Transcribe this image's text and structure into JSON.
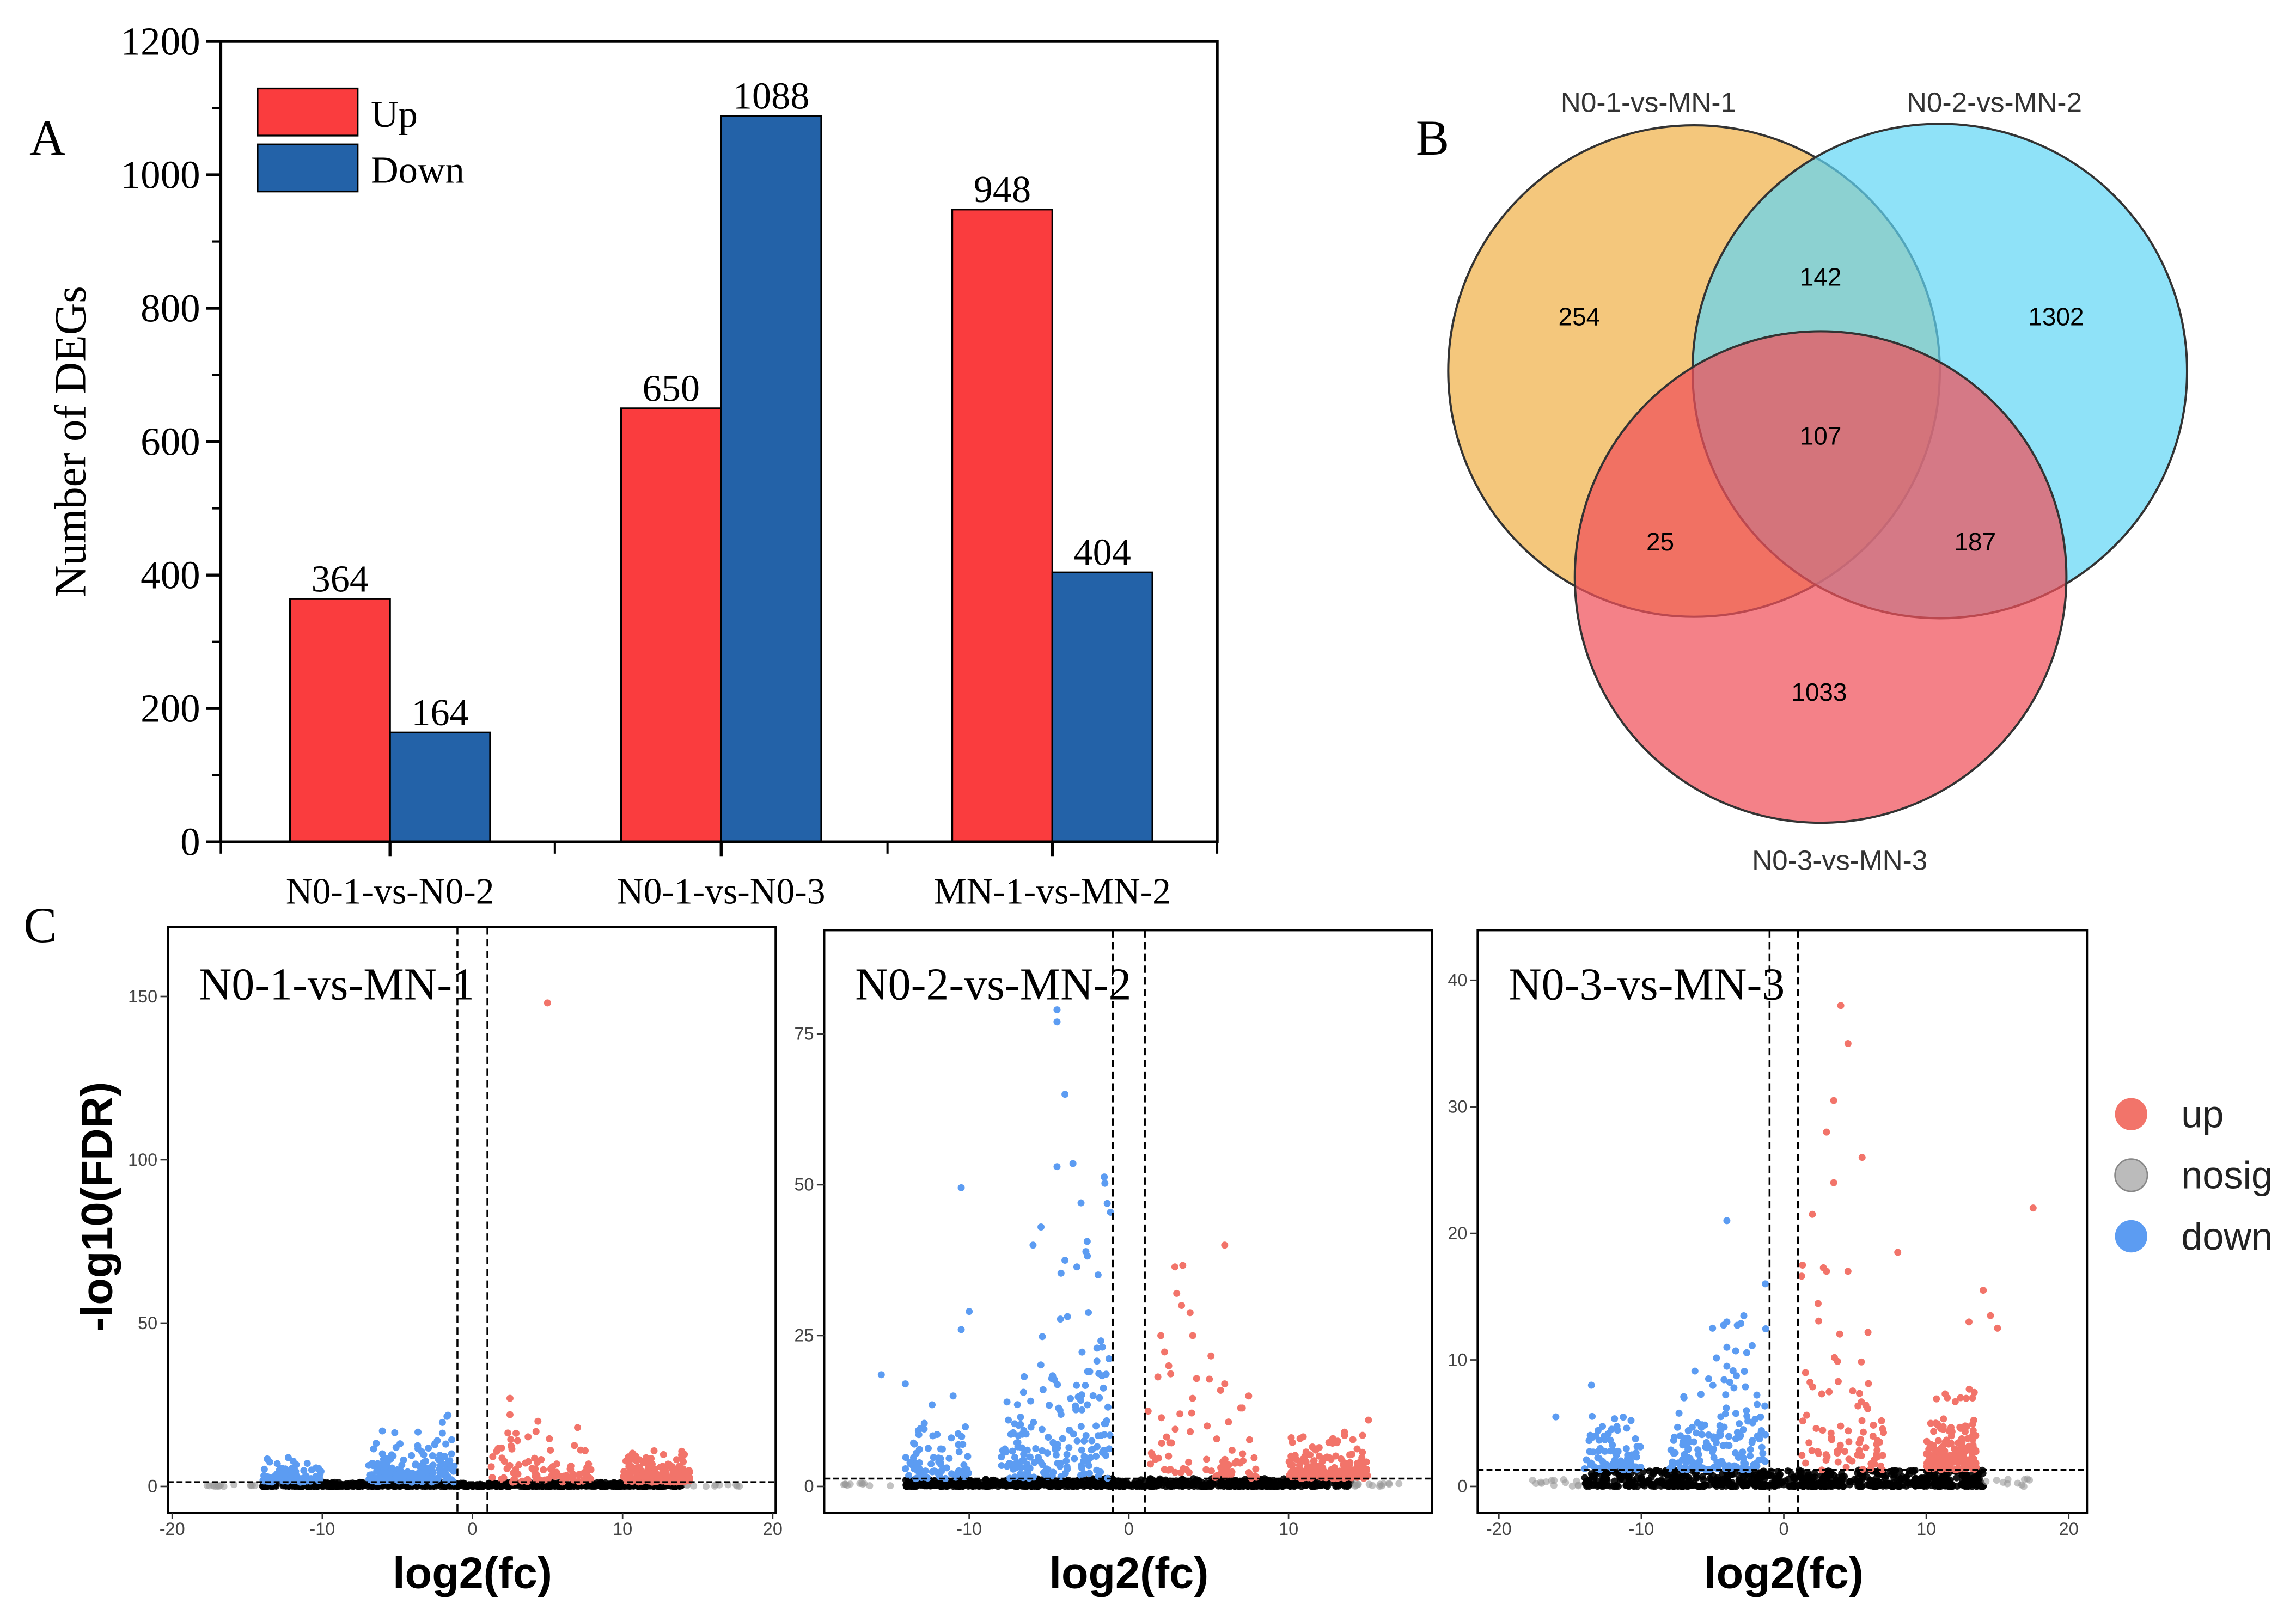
{
  "panel_labels": {
    "a": "A",
    "b": "B",
    "c": "C"
  },
  "colors": {
    "up_bar": "#fa3c3e",
    "down_bar": "#2362a8",
    "venn1": "#f0b450",
    "venn2": "#5fd5f5",
    "venn3": "#f0505a",
    "volcano_up": "#f2746a",
    "volcano_nosig": "#000000",
    "volcano_down": "#5c9cf2"
  },
  "chart_data": [
    {
      "type": "bar",
      "title": "",
      "xlabel": "",
      "ylabel": "Number of DEGs",
      "ylim": [
        0,
        1200
      ],
      "yticks": [
        0,
        200,
        400,
        600,
        800,
        1000,
        1200
      ],
      "categories": [
        "N0-1-vs-N0-2",
        "N0-1-vs-N0-3",
        "MN-1-vs-MN-2"
      ],
      "series": [
        {
          "name": "Up",
          "values": [
            364,
            650,
            948
          ]
        },
        {
          "name": "Down",
          "values": [
            164,
            1088,
            404
          ]
        }
      ],
      "legend": "top-left",
      "data_labels": true
    },
    {
      "type": "venn",
      "sets": [
        "N0-1-vs-MN-1",
        "N0-2-vs-MN-2",
        "N0-3-vs-MN-3"
      ],
      "regions": {
        "only_1": 254,
        "only_2": 1302,
        "only_3": 1033,
        "1_2": 142,
        "1_3": 25,
        "2_3": 187,
        "1_2_3": 107
      }
    },
    {
      "type": "scatter",
      "title": "N0-1-vs-MN-1",
      "xlabel": "log2(fc)",
      "ylabel": "-log10(FDR)",
      "xlim": [
        -20,
        20
      ],
      "ylim": [
        0,
        150
      ],
      "xticks": [
        -20,
        -10,
        0,
        10,
        20
      ],
      "yticks": [
        0,
        50,
        100,
        150
      ],
      "fc_threshold": 1,
      "fdr_threshold_line": 1.3,
      "highlighted_points": {
        "up": [
          [
            5,
            148
          ],
          [
            2.5,
            27
          ],
          [
            2.5,
            22
          ],
          [
            7,
            18
          ],
          [
            3,
            14
          ]
        ],
        "down": [
          [
            -6,
            17
          ],
          [
            -6,
            10
          ],
          [
            -2.5,
            13
          ],
          [
            -13,
            7
          ],
          [
            -13.5,
            7.5
          ]
        ]
      }
    },
    {
      "type": "scatter",
      "title": "N0-2-vs-MN-2",
      "xlabel": "log2(fc)",
      "ylabel": "",
      "xlim": [
        -18,
        20
      ],
      "ylim": [
        0,
        80
      ],
      "xticks": [
        -10,
        0,
        10
      ],
      "yticks": [
        0,
        25,
        50,
        75
      ],
      "fc_threshold": 1,
      "fdr_threshold_line": 1.3,
      "highlighted_points": {
        "up": [
          [
            6,
            40
          ],
          [
            3,
            32
          ],
          [
            3.3,
            30
          ],
          [
            2,
            25
          ],
          [
            4,
            25
          ],
          [
            2.5,
            20
          ],
          [
            6,
            17
          ],
          [
            7.5,
            15
          ],
          [
            7,
            13
          ],
          [
            15,
            11
          ],
          [
            13.5,
            9
          ]
        ],
        "down": [
          [
            -4.5,
            79
          ],
          [
            -4.5,
            77
          ],
          [
            -4,
            65
          ],
          [
            -4.5,
            53
          ],
          [
            -3.5,
            53.5
          ],
          [
            -10.5,
            49.5
          ],
          [
            -3,
            47
          ],
          [
            -5.5,
            43
          ],
          [
            -6,
            40
          ],
          [
            -4,
            37.5
          ],
          [
            -10,
            29
          ],
          [
            -10.5,
            26
          ],
          [
            -15.5,
            18.5
          ],
          [
            -14,
            17
          ],
          [
            -11,
            15
          ]
        ]
      }
    },
    {
      "type": "scatter",
      "title": "N0-3-vs-MN-3",
      "xlabel": "log2(fc)",
      "ylabel": "",
      "xlim": [
        -20,
        20
      ],
      "ylim": [
        0,
        40
      ],
      "xticks": [
        -20,
        -10,
        0,
        10,
        20
      ],
      "yticks": [
        0,
        10,
        20,
        30,
        40
      ],
      "fc_threshold": 1,
      "fdr_threshold_line": 1.3,
      "highlighted_points": {
        "up": [
          [
            4,
            38
          ],
          [
            4.5,
            35
          ],
          [
            3.5,
            30.5
          ],
          [
            3,
            28
          ],
          [
            5.5,
            26
          ],
          [
            3.5,
            24
          ],
          [
            17.5,
            22
          ],
          [
            2,
            21.5
          ],
          [
            8,
            18.5
          ],
          [
            14,
            15.5
          ],
          [
            14.5,
            13.5
          ],
          [
            15,
            12.5
          ],
          [
            13,
            13
          ],
          [
            3,
            17
          ],
          [
            4.5,
            17
          ]
        ],
        "down": [
          [
            -4,
            21
          ],
          [
            -4,
            13
          ],
          [
            -5,
            12.5
          ],
          [
            -4,
            11
          ],
          [
            -4,
            9.5
          ],
          [
            -13.5,
            8
          ],
          [
            -16,
            5.5
          ],
          [
            -7,
            7
          ]
        ]
      }
    }
  ],
  "volcano_legend": [
    {
      "label": "up",
      "key": "volcano_up"
    },
    {
      "label": "nosig",
      "key": "volcano_nosig"
    },
    {
      "label": "down",
      "key": "volcano_down"
    }
  ]
}
